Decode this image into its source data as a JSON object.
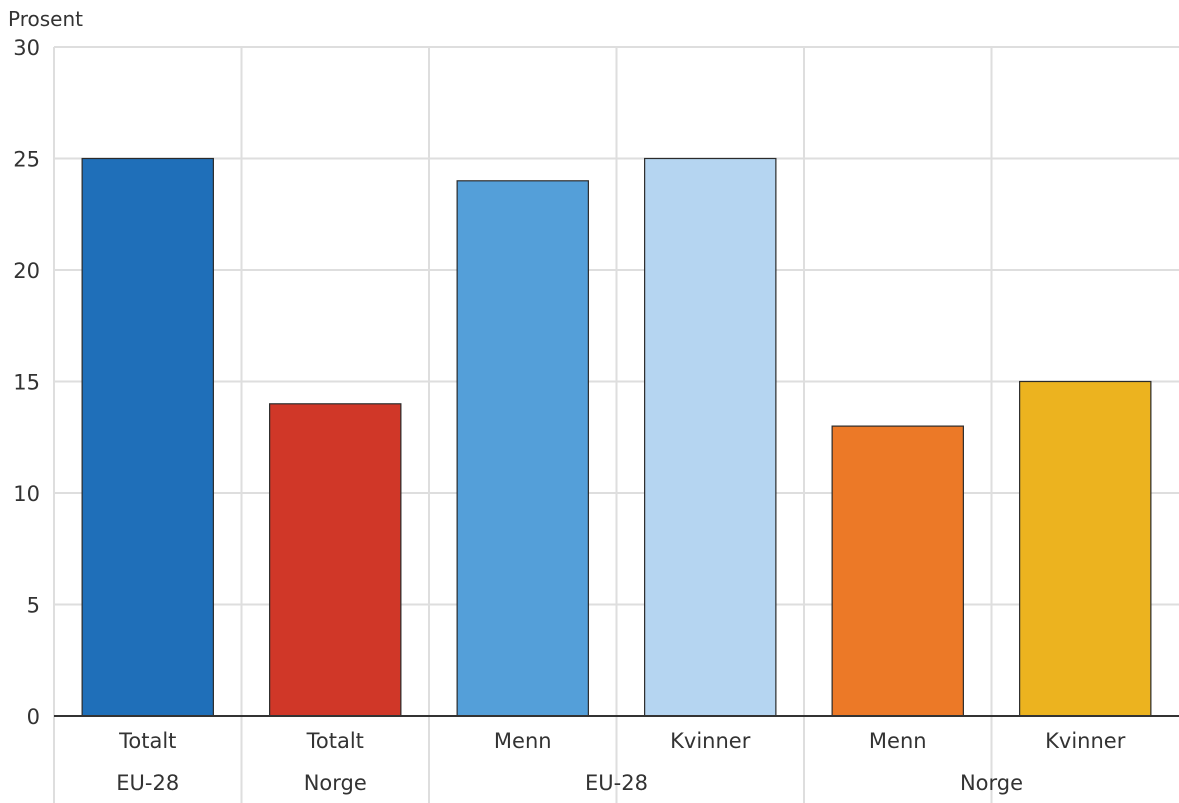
{
  "chart_data": {
    "type": "bar",
    "ylabel": "Prosent",
    "ylim": [
      0,
      30
    ],
    "yticks": [
      0,
      5,
      10,
      15,
      20,
      25,
      30
    ],
    "grid": true,
    "categories": [
      {
        "label": "Totalt",
        "group": "EU-28",
        "value": 25,
        "color": "#1f6fb9"
      },
      {
        "label": "Totalt",
        "group": "Norge",
        "value": 14,
        "color": "#d03728"
      },
      {
        "label": "Menn",
        "group": "EU-28",
        "value": 24,
        "color": "#549fd9"
      },
      {
        "label": "Kvinner",
        "group": "EU-28",
        "value": 25,
        "color": "#b5d5f1"
      },
      {
        "label": "Menn",
        "group": "Norge",
        "value": 13,
        "color": "#ec7927"
      },
      {
        "label": "Kvinner",
        "group": "Norge",
        "value": 15,
        "color": "#ecb31f"
      }
    ],
    "groups": [
      {
        "label": "EU-28",
        "span": [
          0,
          0
        ]
      },
      {
        "label": "Norge",
        "span": [
          1,
          1
        ]
      },
      {
        "label": "EU-28",
        "span": [
          2,
          3
        ]
      },
      {
        "label": "Norge",
        "span": [
          4,
          5
        ]
      }
    ]
  }
}
